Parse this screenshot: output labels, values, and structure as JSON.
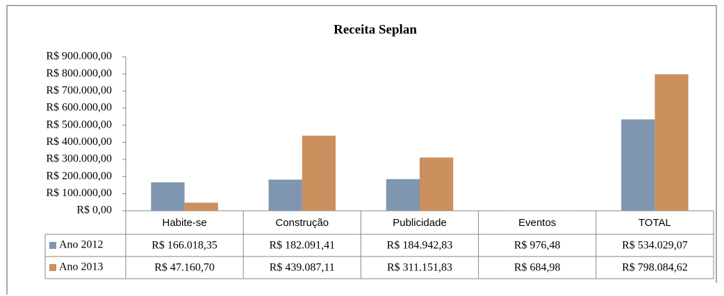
{
  "chart_data": {
    "type": "bar",
    "title": "Receita Seplan",
    "categories": [
      "Habite-se",
      "Construção",
      "Publicidade",
      "Eventos",
      "TOTAL"
    ],
    "series": [
      {
        "name": "Ano 2012",
        "color": "#7f96b0",
        "values": [
          166018.35,
          182091.41,
          184942.83,
          976.48,
          534029.07
        ],
        "value_labels": [
          "R$ 166.018,35",
          "R$ 182.091,41",
          "R$ 184.942,83",
          "R$ 976,48",
          "R$ 534.029,07"
        ]
      },
      {
        "name": "Ano 2013",
        "color": "#cc8f5e",
        "values": [
          47160.7,
          439087.11,
          311151.83,
          684.98,
          798084.62
        ],
        "value_labels": [
          "R$ 47.160,70",
          "R$ 439.087,11",
          "R$ 311.151,83",
          "R$ 684,98",
          "R$ 798.084,62"
        ]
      }
    ],
    "ylim": [
      0,
      900000
    ],
    "yticks": [
      {
        "value": 0,
        "label": "R$ 0,00"
      },
      {
        "value": 100000,
        "label": "R$ 100.000,00"
      },
      {
        "value": 200000,
        "label": "R$ 200.000,00"
      },
      {
        "value": 300000,
        "label": "R$ 300.000,00"
      },
      {
        "value": 400000,
        "label": "R$ 400.000,00"
      },
      {
        "value": 500000,
        "label": "R$ 500.000,00"
      },
      {
        "value": 600000,
        "label": "R$ 600.000,00"
      },
      {
        "value": 700000,
        "label": "R$ 700.000,00"
      },
      {
        "value": 800000,
        "label": "R$ 800.000,00"
      },
      {
        "value": 900000,
        "label": "R$ 900.000,00"
      }
    ],
    "grid": false
  }
}
